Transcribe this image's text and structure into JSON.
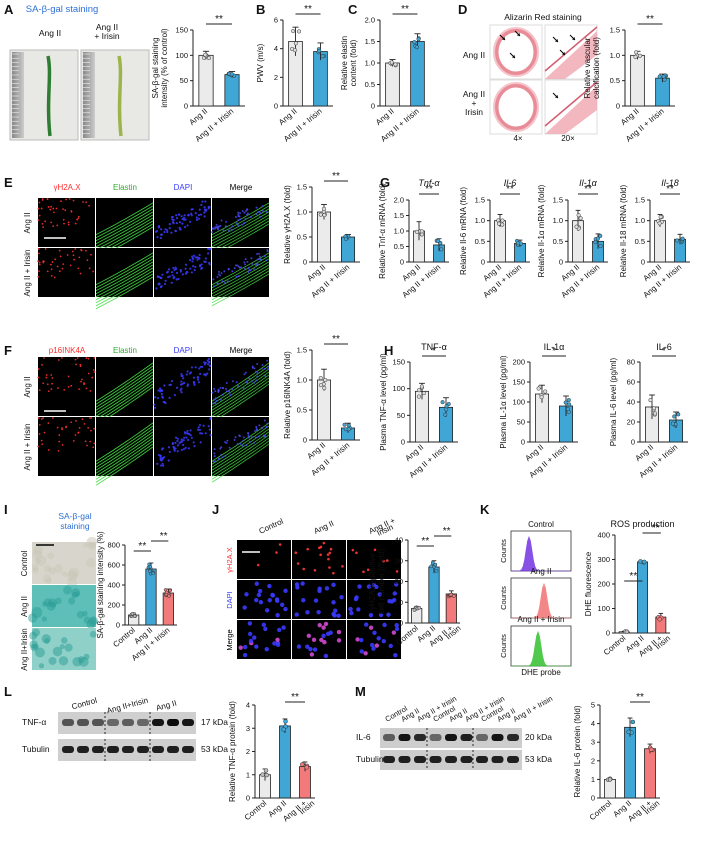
{
  "colors": {
    "grey": "#ebebeb",
    "blue": "#3fa6d6",
    "red": "#f27a7a",
    "redDot": "#e53935",
    "purple": "#7b3fe4",
    "green": "#3ec43a",
    "axis": "#222222"
  },
  "panels": {
    "A": {
      "label": "A",
      "title": "SA-β-gal staining",
      "img_left": "Ang II",
      "img_right": "Ang II\n+ Irisin"
    },
    "D": {
      "label": "D",
      "title": "Alizarin Red staining",
      "row1": "Ang II",
      "row2": "Ang II\n+\nIrisin",
      "mag1": "4×",
      "mag2": "20×"
    },
    "E": {
      "label": "E",
      "cols": [
        "γH2A.X",
        "Elastin",
        "DAPI",
        "Merge"
      ],
      "rows": [
        "Ang II",
        "Ang II + Irisin"
      ]
    },
    "F": {
      "label": "F",
      "cols": [
        "p16INK4A",
        "Elastin",
        "DAPI",
        "Merge"
      ],
      "rows": [
        "Ang II",
        "Ang II + Irisin"
      ]
    },
    "I": {
      "label": "I",
      "title": "SA-β-gal\nstaining",
      "rows": [
        "Control",
        "Ang II",
        "Ang II+Irisin"
      ]
    },
    "J": {
      "label": "J",
      "cols": [
        "Control",
        "Ang II",
        "Ang II +\nIrisin"
      ],
      "rows": [
        "γH2A.X",
        "DAPI",
        "Merge"
      ]
    },
    "K": {
      "label": "K",
      "hist": [
        {
          "name": "Control",
          "color": "purple"
        },
        {
          "name": "Ang II",
          "color": "red"
        },
        {
          "name": "Ang II + Irisin",
          "color": "green"
        }
      ],
      "ylabel": "Counts",
      "xlabel": "DHE probe"
    },
    "L": {
      "label": "L",
      "header": [
        "Control",
        "Ang II+Irisin",
        "Ang II"
      ],
      "rows": [
        {
          "name": "TNF-α",
          "kda": "17 kDa"
        },
        {
          "name": "Tubulin",
          "kda": "53 kDa"
        }
      ]
    },
    "M": {
      "label": "M",
      "header": [
        "Control",
        "Ang II",
        "Ang II + Irisin",
        "Control",
        "Ang II",
        "Ang II + Irisin",
        "Control",
        "Ang II",
        "Ang II + Irisin"
      ],
      "rows": [
        {
          "name": "IL-6",
          "kda": "20 kDa"
        },
        {
          "name": "Tubulin",
          "kda": "53 kDa"
        }
      ]
    }
  },
  "chart_data": [
    {
      "id": "A",
      "type": "bar",
      "ylabel": "SA-β-gal staining\nintensity (% of control)",
      "categories": [
        "Ang II",
        "Ang II + Irisin"
      ],
      "values": [
        100,
        62
      ],
      "errors": [
        8,
        6
      ],
      "ylim": [
        0,
        150
      ],
      "yticks": [
        0,
        50,
        100,
        150
      ],
      "sig": "**"
    },
    {
      "id": "B",
      "type": "bar",
      "label": "B",
      "ylabel": "PWV (m/s)",
      "categories": [
        "Ang II",
        "Ang II + Irisin"
      ],
      "values": [
        4.5,
        3.8
      ],
      "errors": [
        1.0,
        0.6
      ],
      "ylim": [
        0,
        6
      ],
      "yticks": [
        0,
        2,
        4,
        6
      ],
      "sig": "**"
    },
    {
      "id": "C",
      "type": "bar",
      "label": "C",
      "ylabel": "Relative elastin\ncontent (fold)",
      "categories": [
        "Ang II",
        "Ang II + Irisin"
      ],
      "values": [
        1.0,
        1.5
      ],
      "errors": [
        0.08,
        0.18
      ],
      "ylim": [
        0,
        2.0
      ],
      "yticks": [
        0,
        0.5,
        1.0,
        1.5,
        2.0
      ],
      "sig": "**"
    },
    {
      "id": "D",
      "type": "bar",
      "ylabel": "Relative vascular\ncalcification (fold)",
      "categories": [
        "Ang II",
        "Ang II + Irisin"
      ],
      "values": [
        1.0,
        0.55
      ],
      "errors": [
        0.08,
        0.08
      ],
      "ylim": [
        0,
        1.5
      ],
      "yticks": [
        0,
        0.5,
        1.0,
        1.5
      ],
      "sig": "**"
    },
    {
      "id": "E",
      "type": "bar",
      "ylabel": "Relative γH2A.X (fold)",
      "categories": [
        "Ang II",
        "Ang II + Irisin"
      ],
      "values": [
        1.0,
        0.5
      ],
      "errors": [
        0.15,
        0.05
      ],
      "ylim": [
        0,
        1.5
      ],
      "yticks": [
        0,
        0.5,
        1.0,
        1.5
      ],
      "sig": "**"
    },
    {
      "id": "G1",
      "type": "bar",
      "label": "G",
      "title": "Tnf-α",
      "ylabel": "Relative Tnf-α mRNA (fold)",
      "categories": [
        "Ang II",
        "Ang II + Irisin"
      ],
      "values": [
        1.0,
        0.55
      ],
      "errors": [
        0.3,
        0.2
      ],
      "ylim": [
        0,
        2.0
      ],
      "yticks": [
        0,
        0.5,
        1.0,
        1.5,
        2.0
      ],
      "sig": "**"
    },
    {
      "id": "G2",
      "type": "bar",
      "title": "Il-6",
      "ylabel": "Relative Il-6 mRNA (fold)",
      "categories": [
        "Ang II",
        "Ang II + Irisin"
      ],
      "values": [
        1.0,
        0.45
      ],
      "errors": [
        0.15,
        0.08
      ],
      "ylim": [
        0,
        1.5
      ],
      "yticks": [
        0,
        0.5,
        1.0,
        1.5
      ],
      "sig": "**"
    },
    {
      "id": "G3",
      "type": "bar",
      "title": "Il-1α",
      "ylabel": "Relative Il-1α mRNA (fold)",
      "categories": [
        "Ang II",
        "Ang II + Irisin"
      ],
      "values": [
        1.0,
        0.5
      ],
      "errors": [
        0.25,
        0.18
      ],
      "ylim": [
        0,
        1.5
      ],
      "yticks": [
        0,
        0.5,
        1.0,
        1.5
      ],
      "sig": "**"
    },
    {
      "id": "G4",
      "type": "bar",
      "title": "Il-18",
      "ylabel": "Relative Il-18 mRNA (fold)",
      "categories": [
        "Ang II",
        "Ang II + Irisin"
      ],
      "values": [
        1.0,
        0.55
      ],
      "errors": [
        0.15,
        0.12
      ],
      "ylim": [
        0,
        1.5
      ],
      "yticks": [
        0,
        0.5,
        1.0,
        1.5
      ],
      "sig": "**"
    },
    {
      "id": "F",
      "type": "bar",
      "ylabel": "Relative p16INK4A (fold)",
      "categories": [
        "Ang II",
        "Ang II + Irisin"
      ],
      "values": [
        1.0,
        0.2
      ],
      "errors": [
        0.18,
        0.08
      ],
      "ylim": [
        0,
        1.5
      ],
      "yticks": [
        0,
        0.5,
        1.0,
        1.5
      ],
      "sig": "**"
    },
    {
      "id": "H1",
      "type": "bar",
      "label": "H",
      "title": "TNF-α",
      "ylabel": "Plasma TNF-α level (pg/ml)",
      "categories": [
        "Ang II",
        "Ang II + Irisin"
      ],
      "values": [
        95,
        65
      ],
      "errors": [
        15,
        18
      ],
      "ylim": [
        0,
        150
      ],
      "yticks": [
        0,
        50,
        100,
        150
      ],
      "sig": "*"
    },
    {
      "id": "H2",
      "type": "bar",
      "title": "IL-1α",
      "ylabel": "Plasma IL-1α level (pg/ml)",
      "categories": [
        "Ang II",
        "Ang II + Irisin"
      ],
      "values": [
        120,
        90
      ],
      "errors": [
        22,
        25
      ],
      "ylim": [
        0,
        200
      ],
      "yticks": [
        0,
        50,
        100,
        150,
        200
      ],
      "sig": "*"
    },
    {
      "id": "H3",
      "type": "bar",
      "title": "IL-6",
      "ylabel": "Plasma IL-6 level (pg/ml)",
      "categories": [
        "Ang II",
        "Ang II + Irisin"
      ],
      "values": [
        35,
        22
      ],
      "errors": [
        12,
        8
      ],
      "ylim": [
        0,
        80
      ],
      "yticks": [
        0,
        20,
        40,
        60,
        80
      ],
      "sig": "*"
    },
    {
      "id": "I",
      "type": "bar",
      "ylabel": "SA-β-gal staining intensity (%)",
      "categories": [
        "Control",
        "Ang II",
        "Ang II + Irisin"
      ],
      "values": [
        100,
        560,
        320
      ],
      "errors": [
        15,
        60,
        40
      ],
      "ylim": [
        0,
        800
      ],
      "yticks": [
        0,
        200,
        400,
        600,
        800
      ],
      "sig": [
        "**",
        "**"
      ]
    },
    {
      "id": "J",
      "type": "bar",
      "ylabel": "γH2A.X-positive\ncell number (/field)",
      "categories": [
        "Control",
        "Ang II",
        "Ang II +\nIrisin"
      ],
      "values": [
        7,
        27,
        14
      ],
      "errors": [
        1,
        3,
        1.5
      ],
      "ylim": [
        0,
        40
      ],
      "yticks": [
        0,
        10,
        20,
        30,
        40
      ],
      "sig": [
        "**",
        "**"
      ]
    },
    {
      "id": "K",
      "type": "bar",
      "title": "ROS production",
      "ylabel": "DHE fluorescence",
      "categories": [
        "Control",
        "Ang II",
        "Ang II +\nIrisin"
      ],
      "values": [
        5,
        290,
        65
      ],
      "errors": [
        2,
        3,
        15
      ],
      "ylim": [
        0,
        400
      ],
      "yticks": [
        0,
        100,
        200,
        300,
        400
      ],
      "sig": [
        "**",
        "**"
      ]
    },
    {
      "id": "L",
      "type": "bar",
      "ylabel": "Relative TNF-α protein (fold)",
      "categories": [
        "Control",
        "Ang II",
        "Ang II +\nIrisin"
      ],
      "values": [
        1.0,
        3.1,
        1.35
      ],
      "errors": [
        0.25,
        0.3,
        0.2
      ],
      "ylim": [
        0,
        4
      ],
      "yticks": [
        0,
        1,
        2,
        3,
        4
      ],
      "sig": [
        "**"
      ]
    },
    {
      "id": "M",
      "type": "bar",
      "ylabel": "Relative IL-6 protein (fold)",
      "categories": [
        "Control",
        "Ang II",
        "Ang II +\nIrisin"
      ],
      "values": [
        1.0,
        3.8,
        2.65
      ],
      "errors": [
        0.05,
        0.5,
        0.25
      ],
      "ylim": [
        0,
        5
      ],
      "yticks": [
        0,
        1,
        2,
        3,
        4,
        5
      ],
      "sig": [
        "**"
      ]
    }
  ]
}
